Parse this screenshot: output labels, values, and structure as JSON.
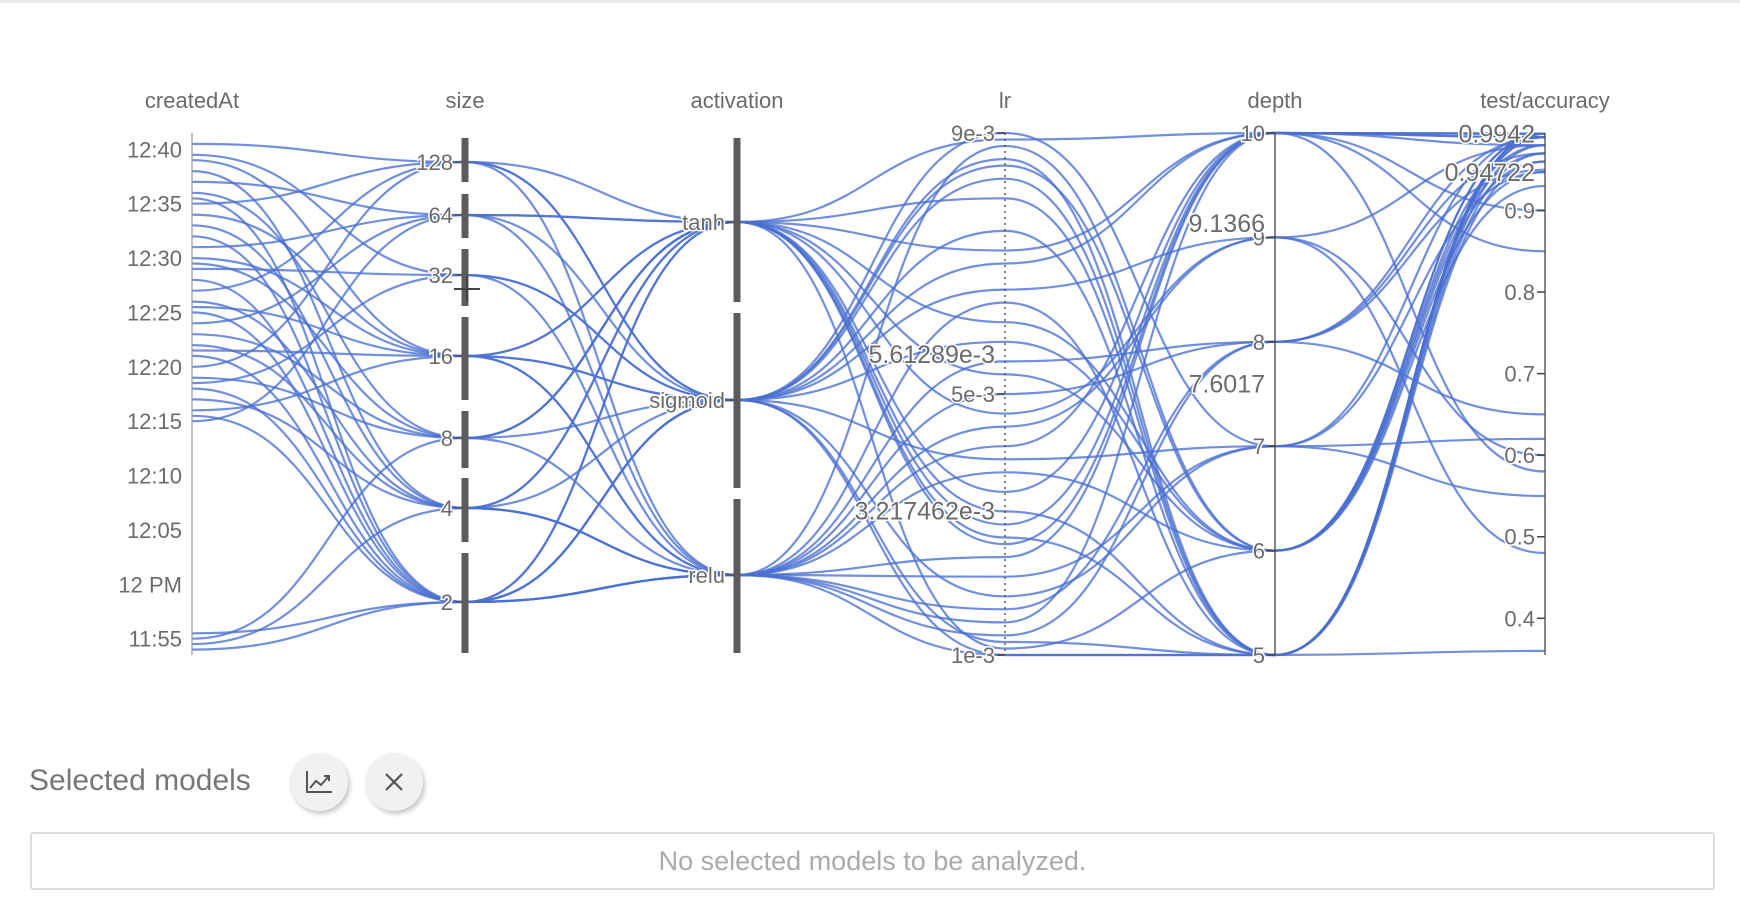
{
  "chart_data": {
    "type": "parallel_coordinates",
    "line_color": "#4a6fd1",
    "axes": [
      {
        "key": "createdAt",
        "label": "createdAt",
        "type": "time",
        "ticks": [
          "12:40",
          "12:35",
          "12:30",
          "12:25",
          "12:20",
          "12:15",
          "12:10",
          "12:05",
          "12 PM",
          "11:55"
        ],
        "tick_minutes": [
          40,
          35,
          30,
          25,
          20,
          15,
          10,
          5,
          0,
          -5
        ],
        "range_minutes": [
          -6.5,
          41.5
        ]
      },
      {
        "key": "size",
        "label": "size",
        "type": "ordinal",
        "categories": [
          "128",
          "64",
          "32",
          "16",
          "8",
          "4",
          "2"
        ]
      },
      {
        "key": "activation",
        "label": "activation",
        "type": "categorical",
        "categories": [
          "tanh",
          "sigmoid",
          "relu"
        ]
      },
      {
        "key": "lr",
        "label": "lr",
        "type": "linear",
        "ticks": [
          "9e-3",
          "5e-3",
          "1e-3"
        ],
        "tick_values": [
          0.009,
          0.005,
          0.001
        ],
        "range": [
          0.001,
          0.009
        ],
        "annotations": [
          {
            "text": "5.61289e-3",
            "value": 0.00561289
          },
          {
            "text": "3.217462e-3",
            "value": 0.003217462
          }
        ]
      },
      {
        "key": "depth",
        "label": "depth",
        "type": "linear",
        "ticks": [
          "10",
          "9",
          "8",
          "7",
          "6",
          "5"
        ],
        "tick_values": [
          10,
          9,
          8,
          7,
          6,
          5
        ],
        "range": [
          5,
          10
        ],
        "annotations": [
          {
            "text": "9.1366",
            "value": 9.1366
          },
          {
            "text": "7.6017",
            "value": 7.6017
          }
        ]
      },
      {
        "key": "test_accuracy",
        "label": "test/accuracy",
        "type": "linear",
        "ticks": [
          "0.9",
          "0.8",
          "0.7",
          "0.6",
          "0.5",
          "0.4"
        ],
        "tick_values": [
          0.9,
          0.8,
          0.7,
          0.6,
          0.5,
          0.4
        ],
        "range": [
          0.355,
          0.995
        ],
        "annotations": [
          {
            "text": "0.9942",
            "value": 0.9942
          },
          {
            "text": "0.94722",
            "value": 0.94722
          }
        ]
      }
    ],
    "runs": [
      [
        40.5,
        "128",
        "tanh",
        0.0089,
        10,
        0.9942
      ],
      [
        39.5,
        "32",
        "sigmoid",
        0.0012,
        5,
        0.9942
      ],
      [
        39,
        "16",
        "relu",
        0.0055,
        8,
        0.99
      ],
      [
        38,
        "4",
        "tanh",
        0.0011,
        6,
        0.97
      ],
      [
        37,
        "64",
        "tanh",
        0.0035,
        10,
        0.98
      ],
      [
        36,
        "8",
        "sigmoid",
        0.0075,
        5,
        0.9942
      ],
      [
        35.5,
        "2",
        "relu",
        0.0045,
        9,
        0.6
      ],
      [
        35,
        "128",
        "sigmoid",
        0.0019,
        7,
        0.94722
      ],
      [
        34,
        "16",
        "tanh",
        0.008,
        5,
        0.98
      ],
      [
        33,
        "4",
        "relu",
        0.0025,
        10,
        0.85
      ],
      [
        32,
        "2",
        "tanh",
        0.0061,
        6,
        0.9942
      ],
      [
        31,
        "64",
        "relu",
        0.0013,
        8,
        0.95
      ],
      [
        30,
        "16",
        "sigmoid",
        0.007,
        10,
        0.58
      ],
      [
        29.5,
        "8",
        "tanh",
        0.0028,
        5,
        0.99
      ],
      [
        29,
        "32",
        "relu",
        0.0088,
        6,
        0.96
      ],
      [
        28,
        "2",
        "sigmoid",
        0.004,
        7,
        0.55
      ],
      [
        27,
        "128",
        "relu",
        0.0015,
        10,
        0.9942
      ],
      [
        26,
        "4",
        "sigmoid",
        0.0066,
        9,
        0.48
      ],
      [
        25.5,
        "16",
        "tanh",
        0.0032,
        5,
        0.9942
      ],
      [
        25,
        "2",
        "relu",
        0.005,
        8,
        0.97
      ],
      [
        24,
        "64",
        "sigmoid",
        0.0085,
        6,
        0.9942
      ],
      [
        23,
        "8",
        "relu",
        0.0022,
        7,
        0.62
      ],
      [
        22,
        "4",
        "tanh",
        0.0072,
        10,
        0.99
      ],
      [
        21.5,
        "16",
        "sigmoid",
        0.001,
        5,
        0.36
      ],
      [
        21,
        "2",
        "tanh",
        0.0047,
        9,
        0.98
      ],
      [
        20,
        "128",
        "sigmoid",
        0.0058,
        6,
        0.93
      ],
      [
        19,
        "8",
        "tanh",
        0.003,
        10,
        0.9942
      ],
      [
        18.5,
        "32",
        "sigmoid",
        0.0083,
        5,
        0.99
      ],
      [
        18,
        "2",
        "relu",
        0.0017,
        8,
        0.65
      ],
      [
        17,
        "4",
        "relu",
        0.0064,
        5,
        0.97
      ],
      [
        16,
        "16",
        "relu",
        0.0038,
        6,
        0.94722
      ],
      [
        15.5,
        "2",
        "sigmoid",
        0.009,
        7,
        0.9942
      ],
      [
        15,
        "64",
        "tanh",
        0.0027,
        10,
        0.9
      ],
      [
        -4.5,
        "2",
        "relu",
        0.001,
        5,
        0.9942
      ],
      [
        -5,
        "8",
        "tanh",
        0.0053,
        6,
        0.98
      ],
      [
        -6,
        "2",
        "sigmoid",
        0.0086,
        5,
        0.96
      ],
      [
        -5.5,
        "4",
        "relu",
        0.0042,
        10,
        0.99
      ]
    ]
  },
  "selected_models": {
    "title": "Selected models",
    "analyze_icon": "chart-analyze-icon",
    "clear_icon": "close-icon",
    "empty_message": "No selected models to be analyzed."
  }
}
